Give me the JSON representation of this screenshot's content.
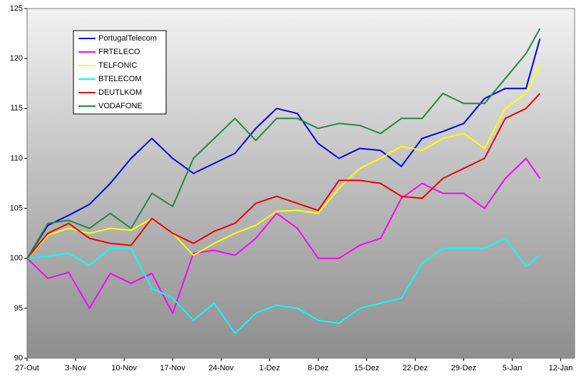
{
  "chart_data": {
    "type": "line",
    "x": [
      0,
      3,
      6,
      9,
      12,
      15,
      18,
      21,
      24,
      27,
      30,
      33,
      36,
      39,
      42,
      45,
      48,
      51,
      54,
      57,
      60,
      63,
      66,
      69,
      72,
      74
    ],
    "xlim": [
      0,
      79
    ],
    "xticks": [
      {
        "value": 0,
        "label": "27-Out"
      },
      {
        "value": 7,
        "label": "3-Nov"
      },
      {
        "value": 14,
        "label": "10-Nov"
      },
      {
        "value": 21,
        "label": "17-Nov"
      },
      {
        "value": 28,
        "label": "24-Nov"
      },
      {
        "value": 35,
        "label": "1-Dez"
      },
      {
        "value": 42,
        "label": "8-Dez"
      },
      {
        "value": 49,
        "label": "15-Dez"
      },
      {
        "value": 56,
        "label": "22-Dez"
      },
      {
        "value": 63,
        "label": "29-Dez"
      },
      {
        "value": 70,
        "label": "5-Jan"
      },
      {
        "value": 77,
        "label": "12-Jan"
      }
    ],
    "ylim": [
      90,
      125
    ],
    "yticks": [
      90,
      95,
      100,
      105,
      110,
      115,
      120,
      125
    ],
    "legend": "top-left",
    "series": [
      {
        "name": "PortugalTelecom",
        "color": "#0000dd",
        "values": [
          100,
          103.3,
          104.3,
          105.4,
          107.5,
          110,
          112,
          110,
          108.5,
          109.5,
          110.5,
          113,
          115,
          114.5,
          111.5,
          110,
          111,
          110.8,
          109.2,
          112,
          112.7,
          113.5,
          116,
          117,
          117,
          122
        ]
      },
      {
        "name": "FRTELECO",
        "color": "#ff00ff",
        "values": [
          100,
          98,
          98.6,
          95,
          98.5,
          97.5,
          98.5,
          94.5,
          100.5,
          100.8,
          100.3,
          102,
          104.5,
          103,
          100,
          100,
          101.3,
          102,
          106,
          107.5,
          106.5,
          106.5,
          105,
          108,
          110,
          108
        ]
      },
      {
        "name": "TELFONIC",
        "color": "#ffff00",
        "values": [
          100,
          102.3,
          103,
          102.5,
          103,
          102.8,
          104,
          102.5,
          100.3,
          101.5,
          102.5,
          103.3,
          104.7,
          104.8,
          104.5,
          107,
          109,
          110,
          111.2,
          110.8,
          112,
          112.5,
          111,
          115,
          116.5,
          119.3
        ]
      },
      {
        "name": "BTELECOM",
        "color": "#00ffff",
        "values": [
          100,
          100.2,
          100.5,
          99.3,
          101,
          101,
          97,
          96,
          93.8,
          95.5,
          92.5,
          94.5,
          95.3,
          95,
          93.8,
          93.5,
          95,
          95.5,
          96,
          99.5,
          101,
          101,
          101,
          102,
          99.2,
          100.3
        ]
      },
      {
        "name": "DEUTLKOM",
        "color": "#ee0000",
        "values": [
          100,
          102.5,
          103.5,
          102,
          101.5,
          101.3,
          104,
          102.5,
          101.5,
          102.7,
          103.5,
          105.5,
          106.2,
          105.5,
          104.8,
          107.8,
          107.8,
          107.5,
          106.2,
          106,
          108,
          109,
          110,
          114,
          115,
          116.5
        ]
      },
      {
        "name": "VODAFONE",
        "color": "#228844",
        "values": [
          100,
          103.5,
          103.8,
          103,
          104.5,
          103,
          106.5,
          105.2,
          110,
          112,
          114,
          111.8,
          114,
          114,
          113,
          113.5,
          113.3,
          112.5,
          114,
          114,
          116.5,
          115.5,
          115.5,
          118,
          120.5,
          123
        ]
      }
    ]
  }
}
